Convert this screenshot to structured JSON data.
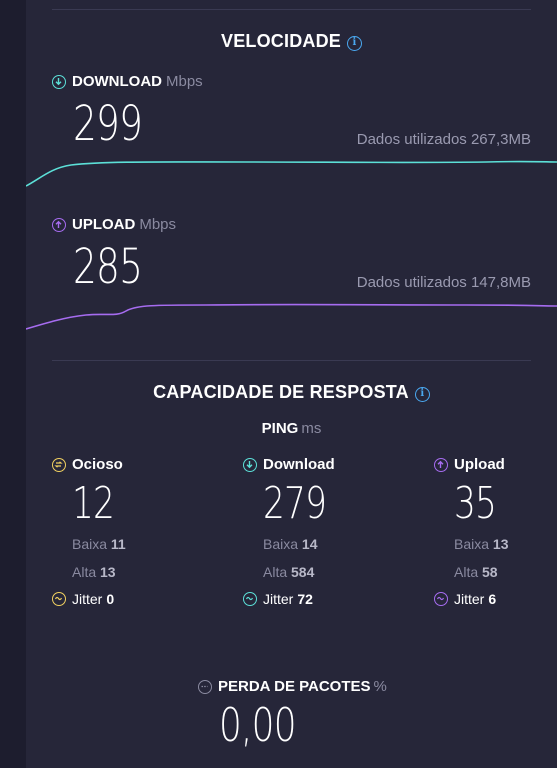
{
  "speed": {
    "title": "VELOCIDADE",
    "download": {
      "label": "DOWNLOAD",
      "unit": "Mbps",
      "value": "299",
      "data_used": "Dados utilizados 267,3MB",
      "color": "#5ce0d8"
    },
    "upload": {
      "label": "UPLOAD",
      "unit": "Mbps",
      "value": "285",
      "data_used": "Dados utilizados 147,8MB",
      "color": "#a66cf0"
    }
  },
  "responsiveness": {
    "title": "CAPACIDADE DE RESPOSTA",
    "ping_label": "PING",
    "ping_unit": "ms",
    "idle": {
      "label": "Ocioso",
      "value": "12",
      "low_label": "Baixa",
      "low": "11",
      "high_label": "Alta",
      "high": "13",
      "jitter_label": "Jitter",
      "jitter": "0",
      "color": "#f0d060"
    },
    "download": {
      "label": "Download",
      "value": "279",
      "low_label": "Baixa",
      "low": "14",
      "high_label": "Alta",
      "high": "584",
      "jitter_label": "Jitter",
      "jitter": "72",
      "color": "#5ce0d8"
    },
    "upload": {
      "label": "Upload",
      "value": "35",
      "low_label": "Baixa",
      "low": "13",
      "high_label": "Alta",
      "high": "58",
      "jitter_label": "Jitter",
      "jitter": "6",
      "color": "#a66cf0"
    }
  },
  "packet_loss": {
    "label": "PERDA DE PACOTES",
    "unit": "%",
    "value": "0,00"
  },
  "icons": {
    "info": "info-icon",
    "download": "arrow-down-circle-icon",
    "upload": "arrow-up-circle-icon",
    "idle": "idle-circle-icon",
    "jitter": "wave-circle-icon",
    "loss": "packet-loss-icon"
  }
}
